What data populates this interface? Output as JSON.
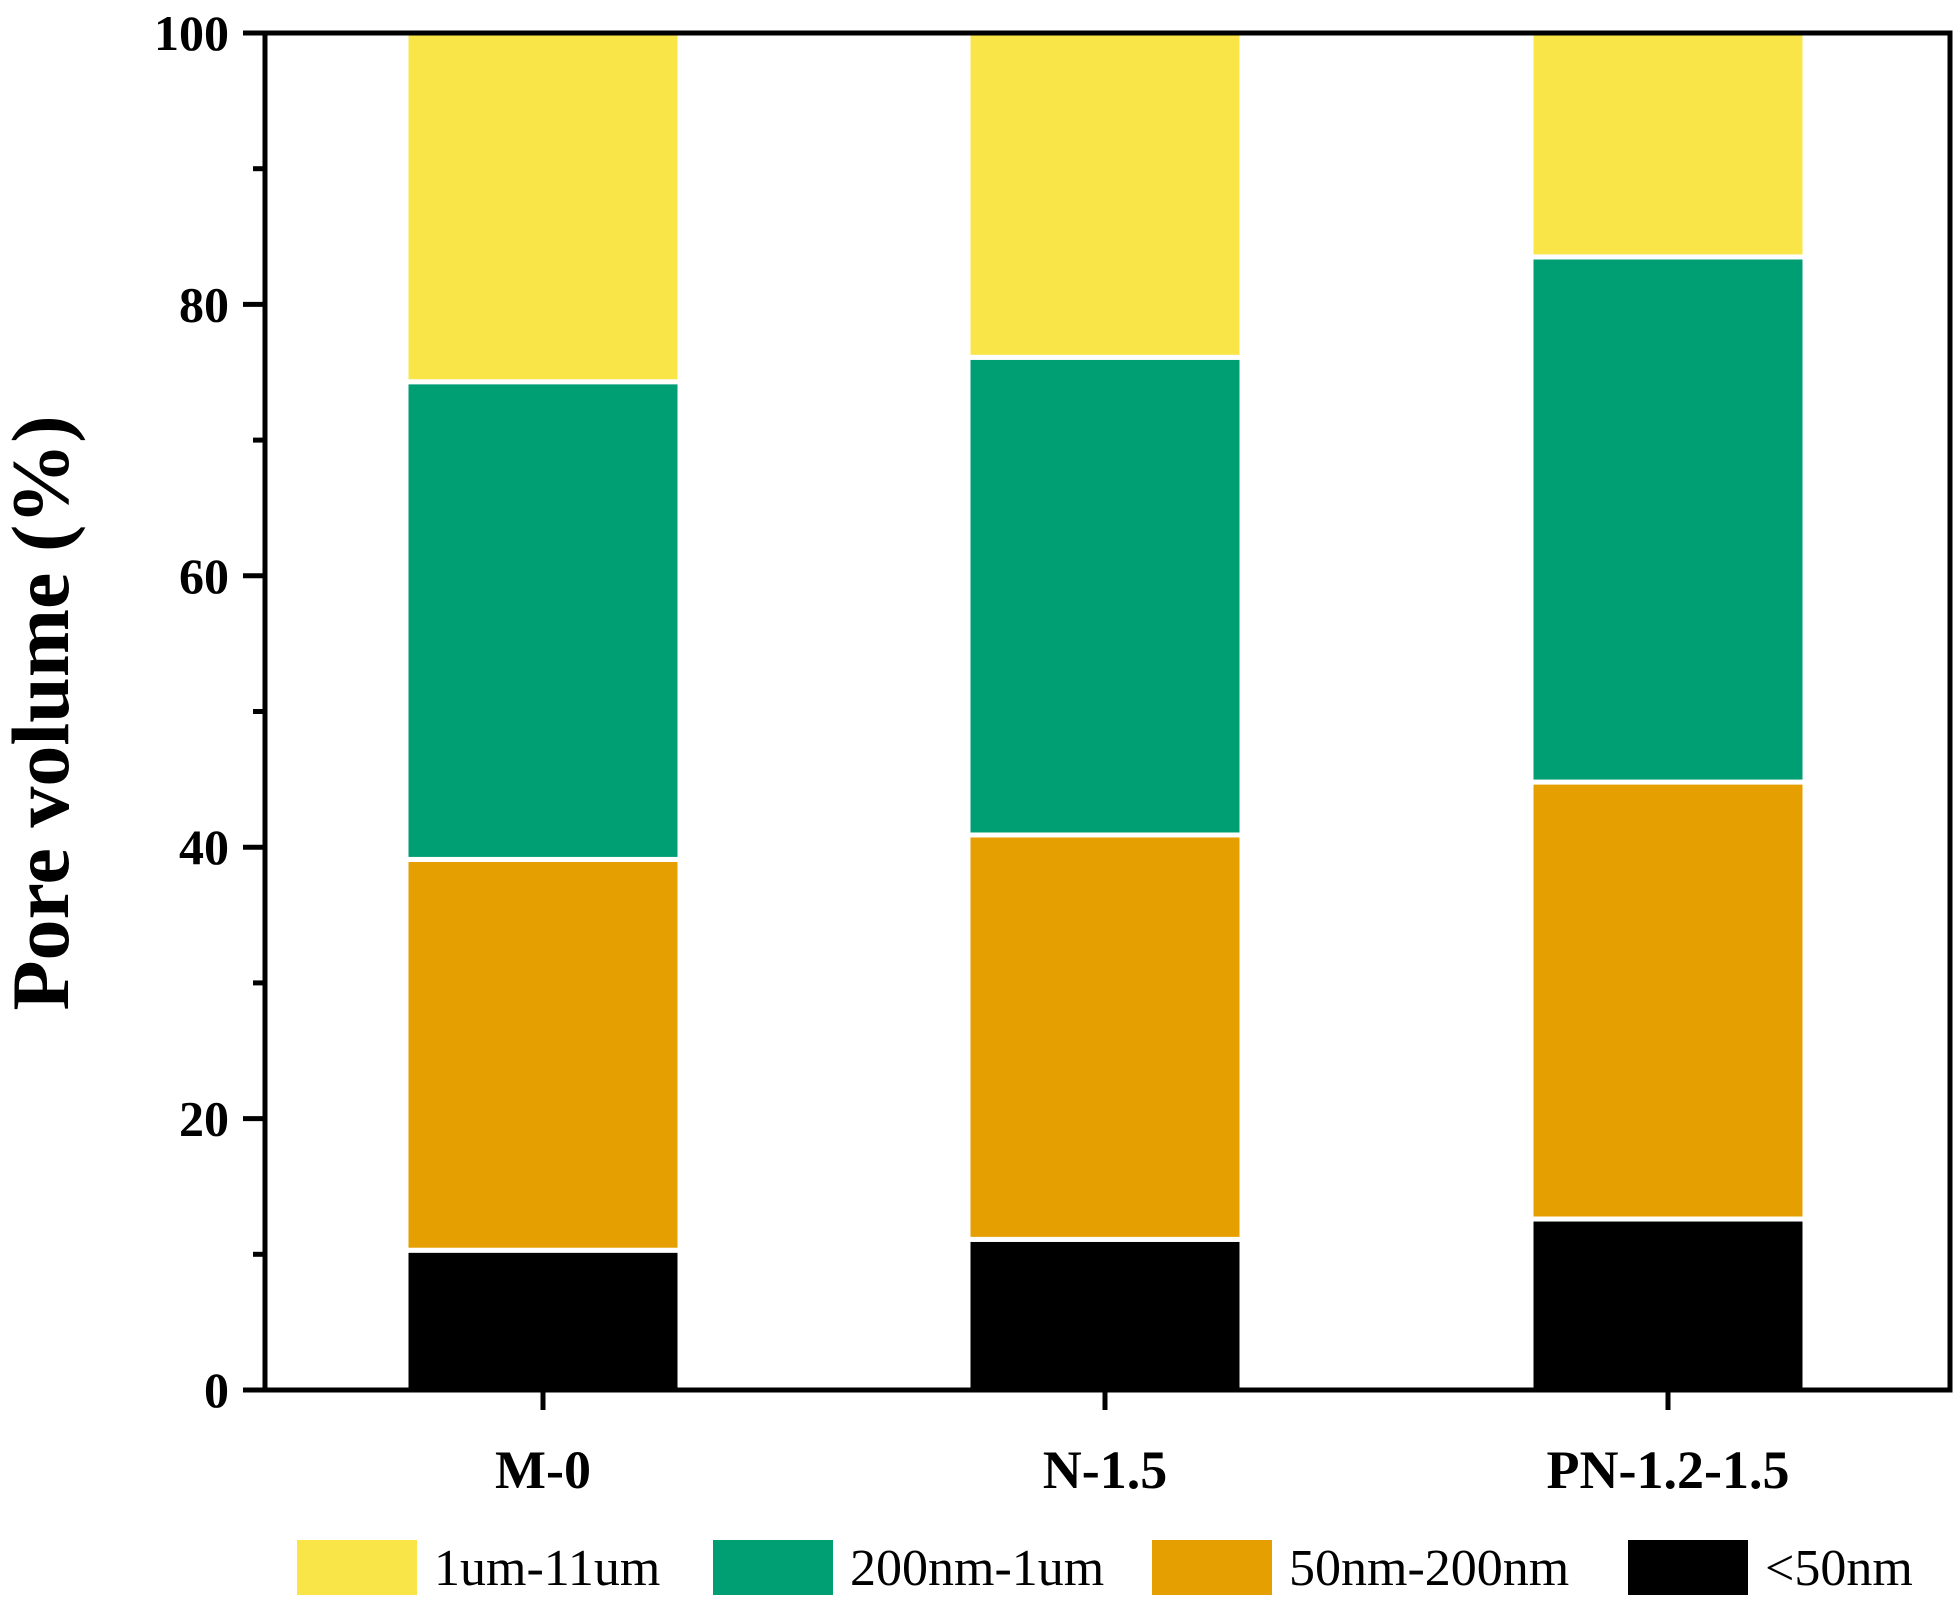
{
  "chart_data": {
    "type": "bar",
    "stacked": true,
    "categories": [
      "M-0",
      "N-1.5",
      "PN-1.2-1.5"
    ],
    "series": [
      {
        "name": "<50nm",
        "color": "#000000",
        "values": [
          10.3,
          11.1,
          12.6
        ]
      },
      {
        "name": "50nm-200nm",
        "color": "#E69F00",
        "values": [
          28.8,
          29.8,
          32.2
        ]
      },
      {
        "name": "200nm-1um",
        "color": "#009E73",
        "values": [
          35.2,
          35.2,
          38.7
        ]
      },
      {
        "name": "1um-11um",
        "color": "#F9E547",
        "values": [
          25.7,
          23.9,
          16.5
        ]
      }
    ],
    "legend_order": [
      "1um-11um",
      "200nm-1um",
      "50nm-200nm",
      "<50nm"
    ],
    "ylabel": "Pore volume (%)",
    "xlabel": "",
    "ylim": [
      0,
      100
    ],
    "yticks": [
      "0",
      "20",
      "40",
      "60",
      "80",
      "100"
    ],
    "grid": false,
    "legend_position": "bottom"
  }
}
